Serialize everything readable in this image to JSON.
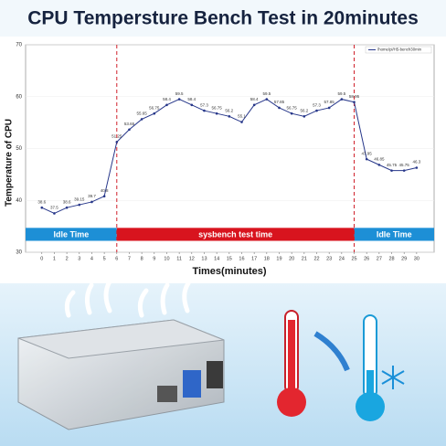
{
  "chart_data": {
    "type": "line",
    "title": "CPU Tempersture Bench Test in 20minutes",
    "x_label": "Times(minutes)",
    "y_label": "Temperature of CPU",
    "x": [
      0,
      1,
      2,
      3,
      4,
      5,
      6,
      7,
      8,
      9,
      10,
      11,
      12,
      13,
      14,
      15,
      16,
      17,
      18,
      19,
      20,
      21,
      22,
      23,
      24,
      25,
      26,
      27,
      28,
      29,
      30
    ],
    "series": [
      {
        "name": "/home/pi/H5-bench30min",
        "color": "#27378a",
        "values": [
          38.6,
          37.5,
          38.6,
          39.15,
          39.7,
          40.8,
          51.25,
          53.65,
          55.65,
          56.75,
          58.4,
          59.5,
          58.4,
          57.3,
          56.75,
          56.2,
          55.1,
          58.4,
          59.5,
          57.85,
          56.75,
          56.2,
          57.3,
          57.85,
          59.5,
          58.95,
          47.95,
          46.85,
          45.75,
          45.75,
          46.3
        ]
      }
    ],
    "xlim": [
      -1.3,
      31.4
    ],
    "xticks": [
      0,
      1,
      2,
      3,
      4,
      5,
      6,
      7,
      8,
      9,
      10,
      11,
      12,
      13,
      14,
      15,
      16,
      17,
      18,
      19,
      20,
      21,
      22,
      23,
      24,
      25,
      26,
      27,
      28,
      29,
      30
    ],
    "ylim": [
      30,
      70
    ],
    "yticks": [
      30,
      40,
      50,
      60,
      70
    ],
    "grid": true,
    "legend": "upper right",
    "dividers": [
      6,
      25
    ],
    "divider_color": "#d0202a",
    "phases": [
      {
        "label": "Idle Time",
        "color": "#1d8fd6",
        "to": 6
      },
      {
        "label": "sysbench test time",
        "color": "#d8141e",
        "from": 6,
        "to": 25
      },
      {
        "label": "Idle Time",
        "color": "#1d8fd6",
        "from": 25
      }
    ]
  }
}
